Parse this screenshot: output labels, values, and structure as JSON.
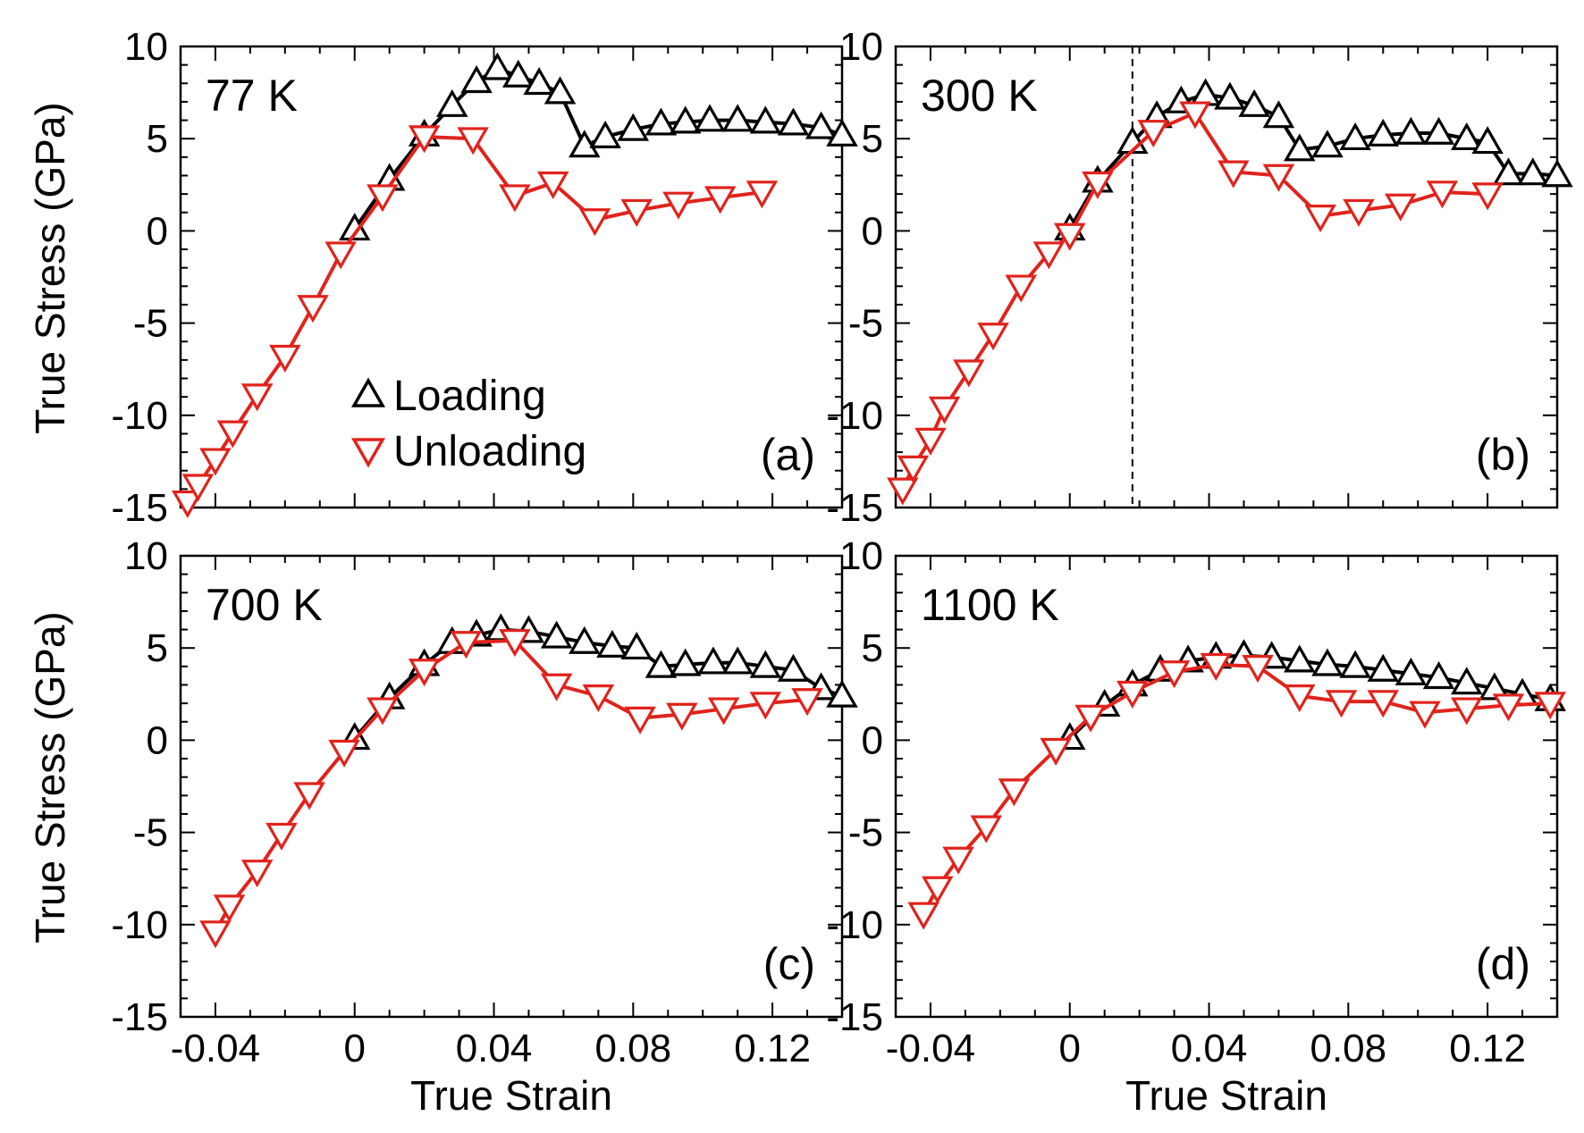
{
  "chart_data": [
    {
      "type": "line",
      "panel_label": "(a)",
      "annotation": "77 K",
      "xlabel": "",
      "ylabel": "True Stress (GPa)",
      "xlim": [
        -0.05,
        0.14
      ],
      "ylim": [
        -15,
        10
      ],
      "xticks": [
        "-0.04",
        "0",
        "0.04",
        "0.08",
        "0.12"
      ],
      "yticks": [
        "-15",
        "-10",
        "-5",
        "0",
        "5",
        "10"
      ],
      "series": [
        {
          "name": "Loading",
          "color": "#000000",
          "marker": "triangle-up",
          "x": [
            0.0,
            0.01,
            0.02,
            0.028,
            0.035,
            0.041,
            0.047,
            0.053,
            0.059,
            0.066,
            0.072,
            0.08,
            0.088,
            0.095,
            0.102,
            0.11,
            0.118,
            0.126,
            0.134,
            0.14
          ],
          "y": [
            0.1,
            2.8,
            5.2,
            6.8,
            8.1,
            8.8,
            8.4,
            8.0,
            7.5,
            4.6,
            5.1,
            5.5,
            5.8,
            5.9,
            6.0,
            6.0,
            5.9,
            5.8,
            5.6,
            5.2
          ]
        },
        {
          "name": "Unloading",
          "color": "#e0231c",
          "marker": "triangle-down",
          "x": [
            -0.048,
            -0.045,
            -0.04,
            -0.035,
            -0.028,
            -0.02,
            -0.012,
            -0.004,
            0.008,
            0.02,
            0.034,
            0.046,
            0.057,
            0.069,
            0.081,
            0.093,
            0.105,
            0.117
          ],
          "y": [
            -14.7,
            -13.8,
            -12.4,
            -10.9,
            -8.9,
            -6.8,
            -4.1,
            -1.2,
            1.9,
            5.1,
            5.0,
            1.9,
            2.6,
            0.6,
            1.1,
            1.5,
            1.8,
            2.1
          ]
        }
      ],
      "legend": [
        "Loading",
        "Unloading"
      ]
    },
    {
      "type": "line",
      "panel_label": "(b)",
      "annotation": "300 K",
      "xlabel": "",
      "ylabel": "",
      "xlim": [
        -0.05,
        0.14
      ],
      "ylim": [
        -15,
        10
      ],
      "xticks": [
        "-0.04",
        "0",
        "0.04",
        "0.08",
        "0.12"
      ],
      "yticks": [
        "-15",
        "-10",
        "-5",
        "0",
        "5",
        "10"
      ],
      "vline_x": 0.018,
      "series": [
        {
          "name": "Loading",
          "color": "#000000",
          "marker": "triangle-up",
          "x": [
            0.0,
            0.008,
            0.018,
            0.025,
            0.032,
            0.039,
            0.046,
            0.053,
            0.06,
            0.066,
            0.074,
            0.082,
            0.09,
            0.098,
            0.106,
            0.114,
            0.12,
            0.126,
            0.133,
            0.14
          ],
          "y": [
            0.1,
            2.7,
            4.8,
            6.2,
            7.0,
            7.4,
            7.2,
            6.8,
            6.2,
            4.4,
            4.6,
            5.0,
            5.2,
            5.3,
            5.3,
            5.0,
            4.8,
            3.1,
            3.1,
            3.0
          ]
        },
        {
          "name": "Unloading",
          "color": "#e0231c",
          "marker": "triangle-down",
          "x": [
            -0.048,
            -0.045,
            -0.04,
            -0.036,
            -0.029,
            -0.022,
            -0.014,
            -0.006,
            0.0,
            0.008,
            0.024,
            0.036,
            0.047,
            0.06,
            0.072,
            0.083,
            0.095,
            0.107,
            0.12
          ],
          "y": [
            -14.0,
            -12.8,
            -11.3,
            -9.6,
            -7.6,
            -5.6,
            -3.0,
            -1.2,
            -0.2,
            2.6,
            5.4,
            6.4,
            3.2,
            3.0,
            0.8,
            1.1,
            1.4,
            2.1,
            2.0
          ]
        }
      ],
      "legend": []
    },
    {
      "type": "line",
      "panel_label": "(c)",
      "annotation": "700 K",
      "xlabel": "True Strain",
      "ylabel": "True Stress (GPa)",
      "xlim": [
        -0.05,
        0.14
      ],
      "ylim": [
        -15,
        10
      ],
      "xticks": [
        "-0.04",
        "0",
        "0.04",
        "0.08",
        "0.12"
      ],
      "yticks": [
        "-15",
        "-10",
        "-5",
        "0",
        "5",
        "10"
      ],
      "series": [
        {
          "name": "Loading",
          "color": "#000000",
          "marker": "triangle-up",
          "x": [
            0.0,
            0.01,
            0.02,
            0.028,
            0.035,
            0.042,
            0.05,
            0.058,
            0.066,
            0.074,
            0.081,
            0.088,
            0.095,
            0.103,
            0.11,
            0.118,
            0.126,
            0.134,
            0.14
          ],
          "y": [
            0.1,
            2.3,
            4.1,
            5.3,
            5.7,
            6.0,
            5.9,
            5.6,
            5.3,
            5.1,
            5.0,
            4.0,
            4.1,
            4.2,
            4.2,
            4.0,
            3.8,
            2.8,
            2.4
          ]
        },
        {
          "name": "Unloading",
          "color": "#e0231c",
          "marker": "triangle-down",
          "x": [
            -0.04,
            -0.036,
            -0.028,
            -0.021,
            -0.013,
            -0.003,
            0.008,
            0.02,
            0.032,
            0.046,
            0.058,
            0.07,
            0.082,
            0.094,
            0.106,
            0.118,
            0.13
          ],
          "y": [
            -10.4,
            -9.0,
            -7.1,
            -5.1,
            -2.9,
            -0.6,
            1.7,
            3.8,
            5.3,
            5.4,
            3.0,
            2.4,
            1.2,
            1.4,
            1.7,
            2.0,
            2.2
          ]
        }
      ],
      "legend": []
    },
    {
      "type": "line",
      "panel_label": "(d)",
      "annotation": "1100 K",
      "xlabel": "True Strain",
      "ylabel": "",
      "xlim": [
        -0.05,
        0.14
      ],
      "ylim": [
        -15,
        10
      ],
      "xticks": [
        "-0.04",
        "0",
        "0.04",
        "0.08",
        "0.12"
      ],
      "yticks": [
        "-15",
        "-10",
        "-5",
        "0",
        "5",
        "10"
      ],
      "series": [
        {
          "name": "Loading",
          "color": "#000000",
          "marker": "triangle-up",
          "x": [
            0.0,
            0.01,
            0.018,
            0.026,
            0.034,
            0.042,
            0.05,
            0.058,
            0.066,
            0.074,
            0.082,
            0.09,
            0.098,
            0.106,
            0.114,
            0.122,
            0.13,
            0.138
          ],
          "y": [
            0.1,
            1.9,
            3.0,
            3.8,
            4.3,
            4.5,
            4.6,
            4.5,
            4.3,
            4.1,
            4.0,
            3.8,
            3.6,
            3.4,
            3.1,
            2.8,
            2.5,
            2.2
          ]
        },
        {
          "name": "Unloading",
          "color": "#e0231c",
          "marker": "triangle-down",
          "x": [
            -0.042,
            -0.038,
            -0.032,
            -0.024,
            -0.016,
            -0.004,
            0.006,
            0.018,
            0.03,
            0.042,
            0.054,
            0.066,
            0.078,
            0.09,
            0.102,
            0.114,
            0.126,
            0.138
          ],
          "y": [
            -9.4,
            -8.0,
            -6.4,
            -4.7,
            -2.7,
            -0.5,
            1.3,
            2.6,
            3.7,
            4.1,
            4.0,
            2.4,
            2.1,
            2.1,
            1.5,
            1.7,
            1.9,
            2.0
          ]
        }
      ],
      "legend": []
    }
  ]
}
